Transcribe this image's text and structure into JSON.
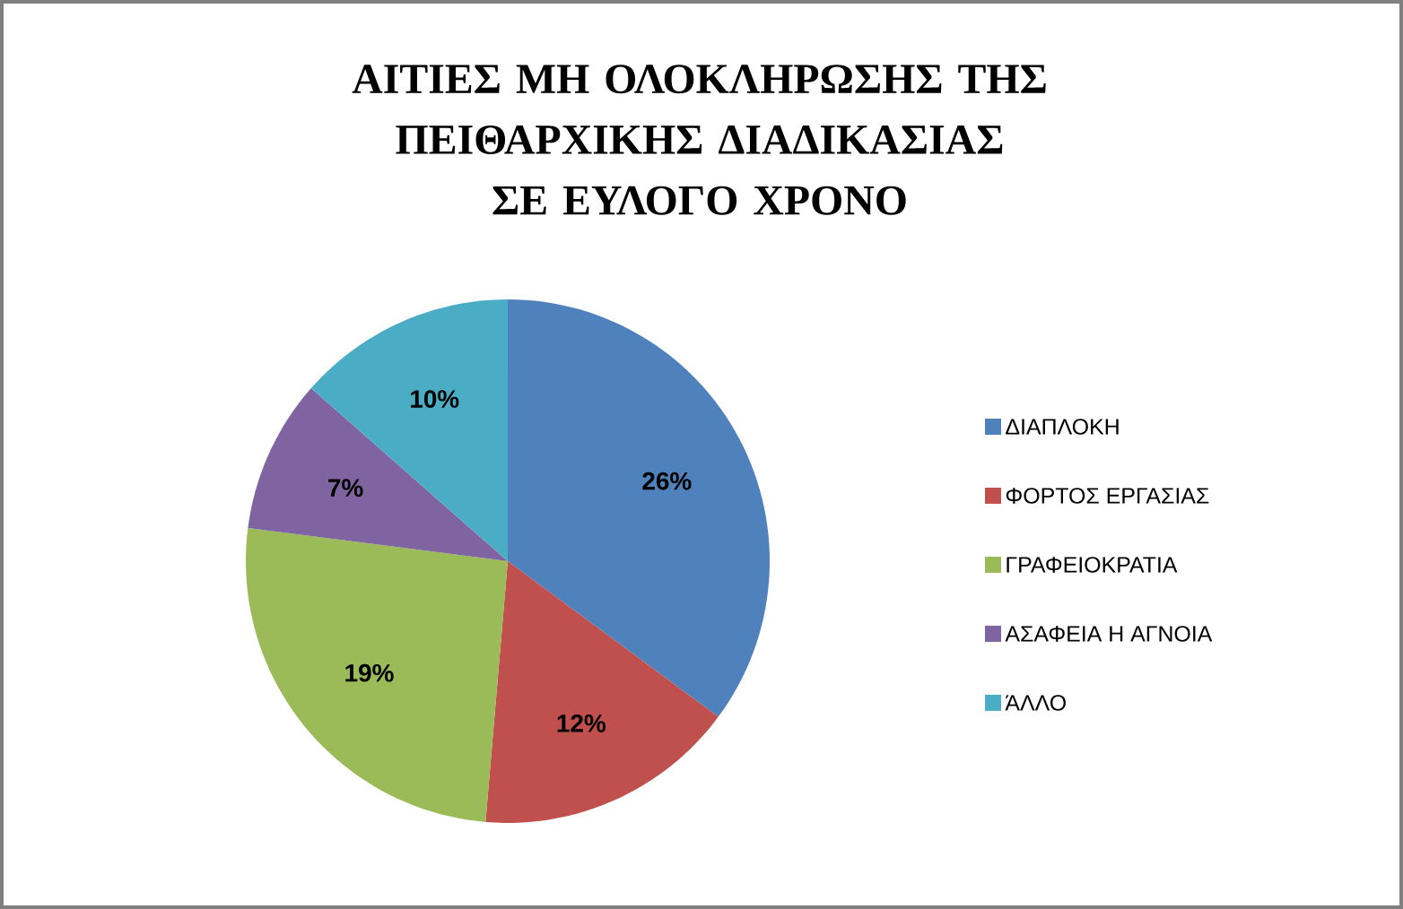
{
  "chart_data": {
    "type": "pie",
    "title": "ΑΙΤΙΕΣ ΜΗ ΟΛΟΚΛΗΡΩΣΗΣ ΤΗΣ ΠΕΙΘΑΡΧΙΚΗΣ ΔΙΑΔΙΚΑΣΙΑΣ ΣΕ ΕΥΛΟΓΟ ΧΡΟΝΟ",
    "categories": [
      "ΔΙΑΠΛΟΚΗ",
      "ΦΟΡΤΟΣ ΕΡΓΑΣΙΑΣ",
      "ΓΡΑΦΕΙΟΚΡΑΤΙΑ",
      "ΑΣΑΦΕΙΑ  Η ΑΓΝΟΙΑ",
      "ΆΛΛΟ"
    ],
    "values": [
      26,
      12,
      19,
      7,
      10
    ],
    "value_labels": [
      "26%",
      "12%",
      "19%",
      "7%",
      "10%"
    ],
    "colors": [
      "#4f81bd",
      "#c0504d",
      "#9bbb59",
      "#8064a2",
      "#4bacc6"
    ],
    "legend": "right"
  }
}
